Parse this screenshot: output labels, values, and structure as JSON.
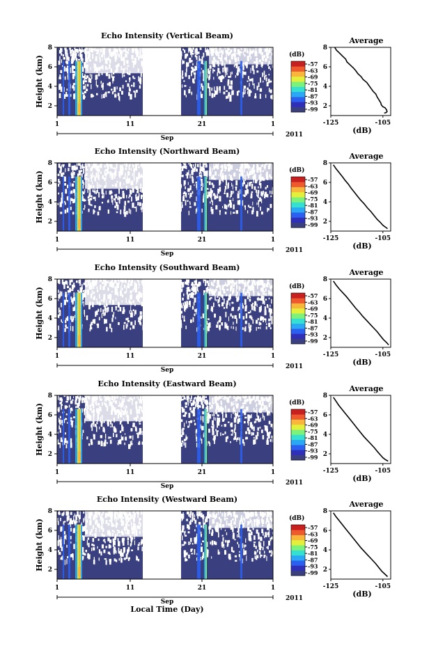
{
  "chart_data": [
    {
      "type": "heatmap",
      "title": "Echo Intensity (Vertical Beam)",
      "ylabel": "Height (km)",
      "yticks": [
        "2",
        "4",
        "6",
        "8"
      ],
      "ylim": [
        1,
        8
      ],
      "xticks": [
        "1",
        "11",
        "21",
        "1"
      ],
      "month_label": "Sep",
      "year_label": "2011",
      "colorbar": {
        "label": "(dB)",
        "ticks": [
          "-57",
          "-63",
          "-69",
          "-75",
          "-81",
          "-87",
          "-93",
          "-99"
        ]
      },
      "profile": {
        "title": "Average",
        "xlabel": "(dB)",
        "xticks": [
          "-125",
          "-105"
        ],
        "xlim": [
          -125,
          -102
        ],
        "points": [
          [
            -123.5,
            8
          ],
          [
            -122.8,
            7.7
          ],
          [
            -121.6,
            7.4
          ],
          [
            -120.5,
            7.1
          ],
          [
            -119.3,
            6.8
          ],
          [
            -118.8,
            6.5
          ],
          [
            -117.6,
            6.2
          ],
          [
            -116.4,
            5.9
          ],
          [
            -115.4,
            5.6
          ],
          [
            -114.6,
            5.3
          ],
          [
            -113.4,
            5.0
          ],
          [
            -112.6,
            4.7
          ],
          [
            -111.2,
            4.4
          ],
          [
            -110.4,
            4.1
          ],
          [
            -109.6,
            3.8
          ],
          [
            -108.8,
            3.5
          ],
          [
            -107.7,
            3.2
          ],
          [
            -107.2,
            2.9
          ],
          [
            -106.5,
            2.6
          ],
          [
            -105.8,
            2.3
          ],
          [
            -105.6,
            2.1
          ],
          [
            -105.0,
            1.9
          ],
          [
            -104.2,
            1.8
          ],
          [
            -103.6,
            1.6
          ],
          [
            -103.4,
            1.4
          ],
          [
            -103.8,
            1.3
          ],
          [
            -104.5,
            1.25
          ]
        ]
      }
    },
    {
      "type": "heatmap",
      "title": "Echo Intensity (Northward Beam)",
      "ylabel": "Height (km)",
      "yticks": [
        "2",
        "4",
        "6",
        "8"
      ],
      "ylim": [
        1,
        8
      ],
      "xticks": [
        "1",
        "11",
        "21",
        "1"
      ],
      "month_label": "Sep",
      "year_label": "2011",
      "colorbar": {
        "label": "(dB)",
        "ticks": [
          "-57",
          "-63",
          "-69",
          "-75",
          "-81",
          "-87",
          "-93",
          "-99"
        ]
      },
      "profile": {
        "title": "Average",
        "xlabel": "(dB)",
        "xticks": [
          "-125",
          "-105"
        ],
        "xlim": [
          -125,
          -102
        ],
        "points": [
          [
            -124,
            7.8
          ],
          [
            -123,
            7.4
          ],
          [
            -121.8,
            7.0
          ],
          [
            -120.6,
            6.6
          ],
          [
            -119.5,
            6.2
          ],
          [
            -118.2,
            5.8
          ],
          [
            -117.2,
            5.4
          ],
          [
            -116.0,
            5.0
          ],
          [
            -114.8,
            4.6
          ],
          [
            -113.6,
            4.2
          ],
          [
            -112.2,
            3.8
          ],
          [
            -111.0,
            3.4
          ],
          [
            -109.6,
            3.0
          ],
          [
            -108.4,
            2.6
          ],
          [
            -107.2,
            2.2
          ],
          [
            -106.0,
            1.9
          ],
          [
            -105.0,
            1.6
          ],
          [
            -104.0,
            1.4
          ],
          [
            -103.2,
            1.25
          ]
        ]
      }
    },
    {
      "type": "heatmap",
      "title": "Echo Intensity (Southward Beam)",
      "ylabel": "Height (km)",
      "yticks": [
        "2",
        "4",
        "6",
        "8"
      ],
      "ylim": [
        1,
        8
      ],
      "xticks": [
        "1",
        "11",
        "21",
        "1"
      ],
      "month_label": "Sep",
      "year_label": "2011",
      "colorbar": {
        "label": "(dB)",
        "ticks": [
          "-57",
          "-63",
          "-69",
          "-75",
          "-81",
          "-87",
          "-93",
          "-99"
        ]
      },
      "profile": {
        "title": "Average",
        "xlabel": "(dB)",
        "xticks": [
          "-125",
          "-105"
        ],
        "xlim": [
          -125,
          -102
        ],
        "points": [
          [
            -124,
            7.8
          ],
          [
            -123,
            7.4
          ],
          [
            -121.8,
            7.0
          ],
          [
            -120.4,
            6.6
          ],
          [
            -119.0,
            6.2
          ],
          [
            -117.8,
            5.8
          ],
          [
            -116.6,
            5.4
          ],
          [
            -115.4,
            5.0
          ],
          [
            -114.0,
            4.6
          ],
          [
            -112.8,
            4.2
          ],
          [
            -111.4,
            3.8
          ],
          [
            -110.0,
            3.4
          ],
          [
            -108.6,
            3.0
          ],
          [
            -107.2,
            2.6
          ],
          [
            -106.0,
            2.2
          ],
          [
            -104.8,
            1.8
          ],
          [
            -103.6,
            1.5
          ],
          [
            -102.8,
            1.25
          ]
        ]
      }
    },
    {
      "type": "heatmap",
      "title": "Echo Intensity (Eastward Beam)",
      "ylabel": "Height (km)",
      "yticks": [
        "2",
        "4",
        "6",
        "8"
      ],
      "ylim": [
        1,
        8
      ],
      "xticks": [
        "1",
        "11",
        "21",
        "1"
      ],
      "month_label": "Sep",
      "year_label": "2011",
      "colorbar": {
        "label": "(dB)",
        "ticks": [
          "-57",
          "-63",
          "-69",
          "-75",
          "-81",
          "-87",
          "-93",
          "-99"
        ]
      },
      "profile": {
        "title": "Average",
        "xlabel": "(dB)",
        "xticks": [
          "-125",
          "-105"
        ],
        "xlim": [
          -125,
          -102
        ],
        "points": [
          [
            -124,
            7.8
          ],
          [
            -123,
            7.4
          ],
          [
            -122,
            7.0
          ],
          [
            -120.8,
            6.6
          ],
          [
            -119.6,
            6.2
          ],
          [
            -118.4,
            5.8
          ],
          [
            -117.2,
            5.4
          ],
          [
            -116.0,
            5.0
          ],
          [
            -114.8,
            4.6
          ],
          [
            -113.6,
            4.2
          ],
          [
            -112.4,
            3.8
          ],
          [
            -111.0,
            3.4
          ],
          [
            -109.6,
            3.0
          ],
          [
            -108.2,
            2.6
          ],
          [
            -107.0,
            2.2
          ],
          [
            -106.0,
            1.9
          ],
          [
            -105.0,
            1.6
          ],
          [
            -104.0,
            1.4
          ],
          [
            -103.0,
            1.25
          ]
        ]
      }
    },
    {
      "type": "heatmap",
      "title": "Echo Intensity (Westward Beam)",
      "ylabel": "Height (km)",
      "yticks": [
        "2",
        "4",
        "6",
        "8"
      ],
      "ylim": [
        1,
        8
      ],
      "xticks": [
        "1",
        "11",
        "21",
        "1"
      ],
      "month_label": "Sep",
      "year_label": "2011",
      "colorbar": {
        "label": "(dB)",
        "ticks": [
          "-57",
          "-63",
          "-69",
          "-75",
          "-81",
          "-87",
          "-93",
          "-99"
        ]
      },
      "profile": {
        "title": "Average",
        "xlabel": "(dB)",
        "xticks": [
          "-125",
          "-105"
        ],
        "xlim": [
          -125,
          -102
        ],
        "points": [
          [
            -124,
            7.8
          ],
          [
            -123,
            7.4
          ],
          [
            -121.8,
            7.0
          ],
          [
            -120.6,
            6.6
          ],
          [
            -119.4,
            6.2
          ],
          [
            -118.2,
            5.8
          ],
          [
            -117.0,
            5.4
          ],
          [
            -115.8,
            5.0
          ],
          [
            -114.6,
            4.6
          ],
          [
            -113.4,
            4.2
          ],
          [
            -112.0,
            3.8
          ],
          [
            -110.6,
            3.4
          ],
          [
            -109.2,
            3.0
          ],
          [
            -107.8,
            2.6
          ],
          [
            -106.6,
            2.2
          ],
          [
            -105.4,
            1.8
          ],
          [
            -104.2,
            1.5
          ],
          [
            -103.2,
            1.25
          ]
        ]
      }
    }
  ],
  "xlabel": "Local Time (Day)",
  "colors": {
    "background": "#3a3f7f",
    "blank": "#ffffff",
    "colormap": [
      "#3a3f7f",
      "#2f2fb8",
      "#2b5ff0",
      "#2aa8f4",
      "#35e0d2",
      "#7cf27a",
      "#e4ef3c",
      "#f8b73a",
      "#ee5a2e",
      "#c8201e"
    ]
  }
}
